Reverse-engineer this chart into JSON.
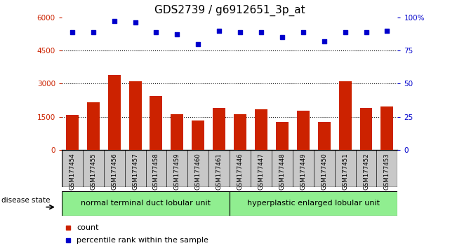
{
  "title": "GDS2739 / g6912651_3p_at",
  "categories": [
    "GSM177454",
    "GSM177455",
    "GSM177456",
    "GSM177457",
    "GSM177458",
    "GSM177459",
    "GSM177460",
    "GSM177461",
    "GSM177446",
    "GSM177447",
    "GSM177448",
    "GSM177449",
    "GSM177450",
    "GSM177451",
    "GSM177452",
    "GSM177453"
  ],
  "counts": [
    1580,
    2150,
    3400,
    3100,
    2450,
    1620,
    1330,
    1900,
    1620,
    1850,
    1280,
    1780,
    1280,
    3100,
    1920,
    1980
  ],
  "percentiles": [
    89,
    89,
    97,
    96,
    89,
    87,
    80,
    90,
    89,
    89,
    85,
    89,
    82,
    89,
    89,
    90
  ],
  "bar_color": "#cc2200",
  "dot_color": "#0000cc",
  "ylim_left": [
    0,
    6000
  ],
  "ylim_right": [
    0,
    100
  ],
  "yticks_left": [
    0,
    1500,
    3000,
    4500,
    6000
  ],
  "yticks_right": [
    0,
    25,
    50,
    75,
    100
  ],
  "group1_label": "normal terminal duct lobular unit",
  "group2_label": "hyperplastic enlarged lobular unit",
  "group1_color": "#90EE90",
  "group2_color": "#90EE90",
  "disease_state_label": "disease state",
  "legend_count_label": "count",
  "legend_percentile_label": "percentile rank within the sample",
  "xtick_bg_color": "#c8c8c8",
  "title_fontsize": 11,
  "tick_fontsize": 7.5,
  "group_label_fontsize": 8,
  "legend_fontsize": 8
}
